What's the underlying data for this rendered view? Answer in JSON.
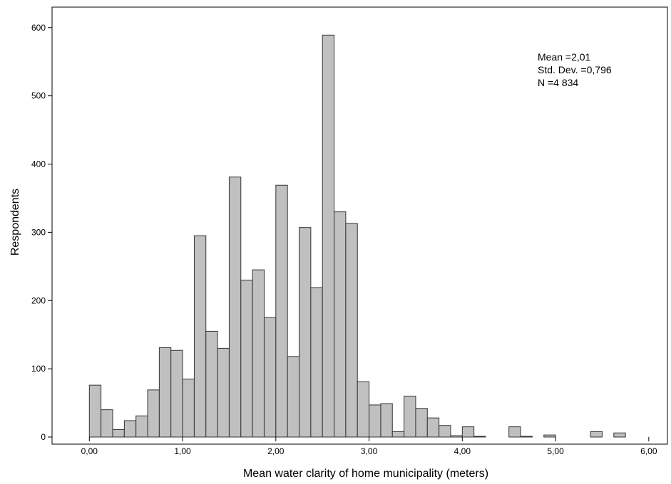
{
  "chart_data": {
    "type": "bar",
    "title": "",
    "xlabel": "Mean water clarity of home municipality (meters)",
    "ylabel": "Respondents",
    "xlim": [
      -0.4,
      6.2
    ],
    "ylim": [
      0,
      630
    ],
    "x_ticks": [
      {
        "value": 0,
        "label": "0,00"
      },
      {
        "value": 1,
        "label": "1,00"
      },
      {
        "value": 2,
        "label": "2,00"
      },
      {
        "value": 3,
        "label": "3,00"
      },
      {
        "value": 4,
        "label": "4,00"
      },
      {
        "value": 5,
        "label": "5,00"
      },
      {
        "value": 6,
        "label": "6,00"
      }
    ],
    "y_ticks": [
      {
        "value": 0,
        "label": "0"
      },
      {
        "value": 100,
        "label": "100"
      },
      {
        "value": 200,
        "label": "200"
      },
      {
        "value": 300,
        "label": "300"
      },
      {
        "value": 400,
        "label": "400"
      },
      {
        "value": 500,
        "label": "500"
      },
      {
        "value": 600,
        "label": "600"
      }
    ],
    "bin_width": 0.125,
    "bin_starts": [
      0,
      0.125,
      0.25,
      0.375,
      0.5,
      0.625,
      0.75,
      0.875,
      1.0,
      1.125,
      1.25,
      1.375,
      1.5,
      1.625,
      1.75,
      1.875,
      2.0,
      2.125,
      2.25,
      2.375,
      2.5,
      2.625,
      2.75,
      2.875,
      3.0,
      3.125,
      3.25,
      3.375,
      3.5,
      3.625,
      3.75,
      3.875,
      4.0,
      4.125,
      4.5,
      4.625,
      4.875,
      5.375,
      5.625
    ],
    "values": [
      76,
      40,
      11,
      24,
      31,
      69,
      131,
      127,
      85,
      295,
      155,
      130,
      381,
      230,
      245,
      175,
      369,
      118,
      307,
      219,
      589,
      330,
      313,
      81,
      47,
      49,
      8,
      60,
      42,
      28,
      17,
      2,
      15,
      1,
      15,
      1,
      3,
      8,
      6
    ],
    "grid": false,
    "stats": {
      "mean": "Mean =2,01",
      "std_dev": "Std. Dev. =0,796",
      "n": "N =4 834"
    }
  }
}
